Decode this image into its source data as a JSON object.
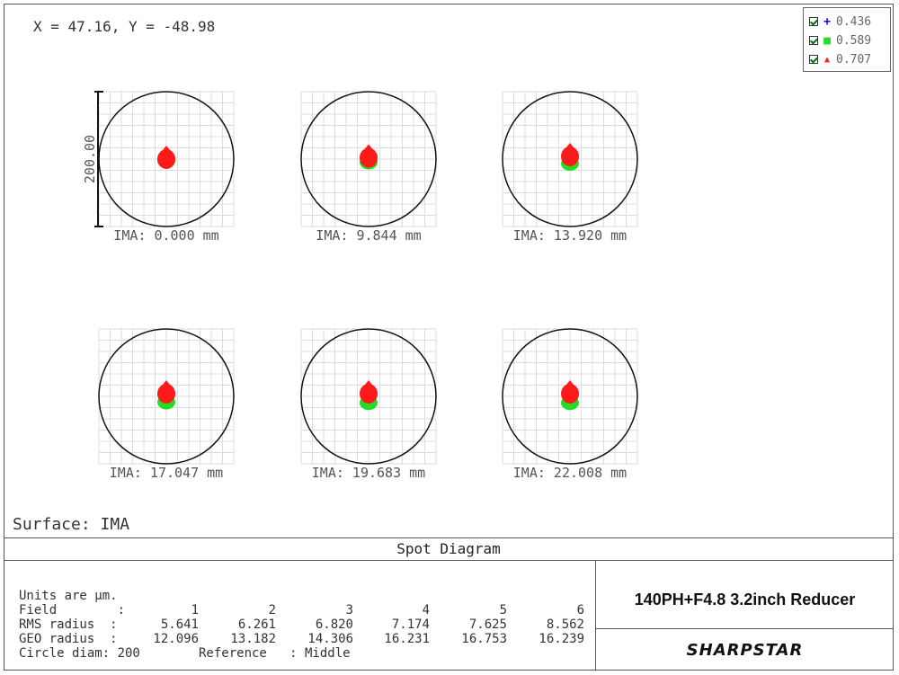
{
  "cursor_readout": "X = 47.16, Y = -48.98",
  "surface_label": "Surface: IMA",
  "diagram_title": "Spot Diagram",
  "lens_name": "140PH+F4.8 3.2inch Reducer",
  "logo_text": "SHARPSTAR",
  "colors": {
    "w436": "#0000ff",
    "w589": "#22dd22",
    "w707": "#ff1a1a"
  },
  "legend": [
    {
      "label": "0.436",
      "marker": "+",
      "color": "#0000ff",
      "checked": true
    },
    {
      "label": "0.589",
      "marker": "■",
      "color": "#22dd22",
      "checked": true
    },
    {
      "label": "0.707",
      "marker": "▲",
      "color": "#ff1a1a",
      "checked": true
    }
  ],
  "stats": {
    "units": "Units are µm.",
    "field_label": "Field        :",
    "fields": [
      "1",
      "2",
      "3",
      "4",
      "5",
      "6"
    ],
    "rms_label": "RMS radius  :",
    "rms": [
      "5.641",
      "6.261",
      "6.820",
      "7.174",
      "7.625",
      "8.562"
    ],
    "geo_label": "GEO radius  :",
    "geo": [
      "12.096",
      "13.182",
      "14.306",
      "16.231",
      "16.753",
      "16.239"
    ],
    "circle": "Circle diam: 200",
    "reference": "Reference   : Middle"
  },
  "chart_data": {
    "type": "scatter",
    "title": "Spot Diagram",
    "scale_bar_label": "200.00",
    "airy_circle_diameter_um": 200,
    "panels": [
      {
        "label": "IMA: 0.000 mm",
        "field": 1,
        "green_offset_um": 0,
        "red_offset_um": 0
      },
      {
        "label": "IMA: 9.844 mm",
        "field": 2,
        "green_offset_um": -2,
        "red_offset_um": 2
      },
      {
        "label": "IMA: 13.920 mm",
        "field": 3,
        "green_offset_um": -4,
        "red_offset_um": 4
      },
      {
        "label": "IMA: 17.047 mm",
        "field": 4,
        "green_offset_um": -6,
        "red_offset_um": 4
      },
      {
        "label": "IMA: 19.683 mm",
        "field": 5,
        "green_offset_um": -7,
        "red_offset_um": 4
      },
      {
        "label": "IMA: 22.008 mm",
        "field": 6,
        "green_offset_um": -7,
        "red_offset_um": 4
      }
    ],
    "series": [
      {
        "name": "0.436",
        "marker": "plus",
        "color": "#0000ff"
      },
      {
        "name": "0.589",
        "marker": "square",
        "color": "#22dd22"
      },
      {
        "name": "0.707",
        "marker": "triangle",
        "color": "#ff1a1a"
      }
    ]
  }
}
